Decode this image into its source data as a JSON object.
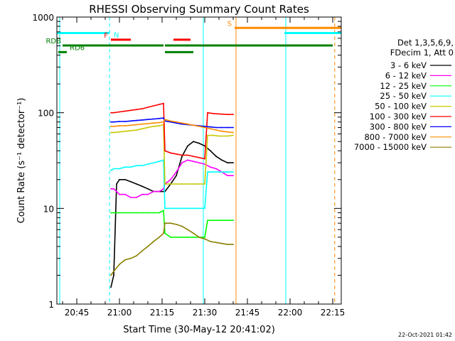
{
  "chart_data": {
    "type": "line",
    "title": "RHESSI Observing Summary Count Rates",
    "xlabel": "Start Time (30-May-12 20:41:02)",
    "ylabel": "Count Rate (s⁻¹ detector⁻¹)",
    "y_scale": "log",
    "ylim": [
      1,
      1000
    ],
    "xlim_minutes": [
      -2,
      98
    ],
    "x_ticks": [
      {
        "label": "20:45",
        "minute": 5
      },
      {
        "label": "21:00",
        "minute": 20
      },
      {
        "label": "21:15",
        "minute": 35
      },
      {
        "label": "21:30",
        "minute": 50
      },
      {
        "label": "21:45",
        "minute": 65
      },
      {
        "label": "22:00",
        "minute": 80
      },
      {
        "label": "22:15",
        "minute": 95
      }
    ],
    "y_ticks": [
      {
        "label": "1",
        "value": 1
      },
      {
        "label": "10",
        "value": 10
      },
      {
        "label": "100",
        "value": 100
      },
      {
        "label": "1000",
        "value": 1000
      }
    ],
    "legend_header": [
      "Det 1,3,5,6,9,",
      "FDecim 1, Att 0"
    ],
    "legend_position": "right",
    "footer": "22-Oct-2021 01:42",
    "series": [
      {
        "name": "3 - 6 keV",
        "color": "#000000",
        "points": [
          [
            17,
            1.5
          ],
          [
            18,
            2
          ],
          [
            19,
            18
          ],
          [
            20,
            20
          ],
          [
            22,
            20
          ],
          [
            24,
            19
          ],
          [
            26,
            18
          ],
          [
            28,
            17
          ],
          [
            30,
            16
          ],
          [
            32,
            15
          ],
          [
            34,
            15
          ],
          [
            35.5,
            15
          ],
          [
            36,
            15
          ],
          [
            38,
            18
          ],
          [
            40,
            22
          ],
          [
            42,
            35
          ],
          [
            44,
            45
          ],
          [
            46,
            50
          ],
          [
            48,
            48
          ],
          [
            50,
            45
          ],
          [
            52,
            40
          ],
          [
            54,
            35
          ],
          [
            56,
            32
          ],
          [
            58,
            30
          ],
          [
            60,
            30
          ]
        ]
      },
      {
        "name": "6 - 12 keV",
        "color": "#ff00ff",
        "points": [
          [
            17,
            16
          ],
          [
            18,
            16
          ],
          [
            19,
            15
          ],
          [
            20,
            14
          ],
          [
            22,
            14
          ],
          [
            24,
            13
          ],
          [
            26,
            13
          ],
          [
            28,
            14
          ],
          [
            30,
            14
          ],
          [
            32,
            15
          ],
          [
            34,
            15
          ],
          [
            35.5,
            16
          ],
          [
            36,
            18
          ],
          [
            38,
            20
          ],
          [
            40,
            24
          ],
          [
            42,
            30
          ],
          [
            44,
            32
          ],
          [
            46,
            31
          ],
          [
            48,
            30
          ],
          [
            50,
            29
          ],
          [
            52,
            27
          ],
          [
            54,
            26
          ],
          [
            56,
            24
          ],
          [
            58,
            22
          ],
          [
            60,
            22
          ]
        ]
      },
      {
        "name": "12 - 25 keV",
        "color": "#00ff00",
        "points": [
          [
            17,
            9
          ],
          [
            18,
            9
          ],
          [
            20,
            9
          ],
          [
            22,
            9
          ],
          [
            24,
            9
          ],
          [
            26,
            9
          ],
          [
            28,
            9
          ],
          [
            30,
            9
          ],
          [
            32,
            9
          ],
          [
            34,
            9
          ],
          [
            35.5,
            9.5
          ],
          [
            36,
            5.5
          ],
          [
            38,
            5
          ],
          [
            40,
            5
          ],
          [
            42,
            5
          ],
          [
            44,
            5
          ],
          [
            46,
            5
          ],
          [
            48,
            5
          ],
          [
            50,
            5
          ],
          [
            51,
            7.5
          ],
          [
            53,
            7.5
          ],
          [
            55,
            7.5
          ],
          [
            58,
            7.5
          ],
          [
            60,
            7.5
          ]
        ]
      },
      {
        "name": "25 - 50 keV",
        "color": "#00ffff",
        "points": [
          [
            17,
            25
          ],
          [
            18,
            26
          ],
          [
            20,
            26
          ],
          [
            22,
            27
          ],
          [
            24,
            27
          ],
          [
            26,
            28
          ],
          [
            28,
            28
          ],
          [
            30,
            29
          ],
          [
            32,
            30
          ],
          [
            34,
            31
          ],
          [
            35.5,
            32
          ],
          [
            36,
            10
          ],
          [
            38,
            10
          ],
          [
            40,
            10
          ],
          [
            42,
            10
          ],
          [
            44,
            10
          ],
          [
            46,
            10
          ],
          [
            48,
            10
          ],
          [
            50,
            10
          ],
          [
            51,
            24
          ],
          [
            53,
            24
          ],
          [
            55,
            24
          ],
          [
            58,
            24
          ],
          [
            60,
            24
          ]
        ]
      },
      {
        "name": "50 - 100 keV",
        "color": "#c8c800",
        "points": [
          [
            17,
            62
          ],
          [
            18,
            62
          ],
          [
            20,
            63
          ],
          [
            22,
            64
          ],
          [
            24,
            65
          ],
          [
            26,
            66
          ],
          [
            28,
            68
          ],
          [
            30,
            70
          ],
          [
            32,
            72
          ],
          [
            34,
            73
          ],
          [
            35.5,
            75
          ],
          [
            36,
            18
          ],
          [
            38,
            18
          ],
          [
            40,
            18
          ],
          [
            42,
            18
          ],
          [
            44,
            18
          ],
          [
            46,
            18
          ],
          [
            48,
            18
          ],
          [
            50,
            18
          ],
          [
            51,
            58
          ],
          [
            53,
            58
          ],
          [
            55,
            57
          ],
          [
            58,
            57
          ],
          [
            60,
            58
          ]
        ]
      },
      {
        "name": "100 - 300 keV",
        "color": "#ff0000",
        "points": [
          [
            17,
            100
          ],
          [
            18,
            100
          ],
          [
            20,
            102
          ],
          [
            22,
            104
          ],
          [
            24,
            106
          ],
          [
            26,
            108
          ],
          [
            28,
            110
          ],
          [
            30,
            114
          ],
          [
            32,
            118
          ],
          [
            34,
            122
          ],
          [
            35.5,
            125
          ],
          [
            36,
            40
          ],
          [
            38,
            38
          ],
          [
            40,
            37
          ],
          [
            42,
            36
          ],
          [
            44,
            36
          ],
          [
            46,
            35
          ],
          [
            48,
            34
          ],
          [
            50,
            33
          ],
          [
            51,
            100
          ],
          [
            53,
            98
          ],
          [
            55,
            97
          ],
          [
            58,
            96
          ],
          [
            60,
            96
          ]
        ]
      },
      {
        "name": "300 - 800 keV",
        "color": "#0000ff",
        "points": [
          [
            17,
            80
          ],
          [
            18,
            80
          ],
          [
            20,
            81
          ],
          [
            22,
            81
          ],
          [
            24,
            82
          ],
          [
            26,
            83
          ],
          [
            28,
            84
          ],
          [
            30,
            85
          ],
          [
            32,
            86
          ],
          [
            34,
            87
          ],
          [
            35.5,
            88
          ],
          [
            36,
            82
          ],
          [
            38,
            80
          ],
          [
            40,
            78
          ],
          [
            42,
            76
          ],
          [
            44,
            75
          ],
          [
            46,
            74
          ],
          [
            48,
            73
          ],
          [
            50,
            72
          ],
          [
            52,
            71
          ],
          [
            54,
            70
          ],
          [
            56,
            70
          ],
          [
            58,
            70
          ],
          [
            60,
            70
          ]
        ]
      },
      {
        "name": "800 - 7000 keV",
        "color": "#ff8c00",
        "points": [
          [
            17,
            72
          ],
          [
            18,
            72
          ],
          [
            20,
            73
          ],
          [
            22,
            73
          ],
          [
            24,
            74
          ],
          [
            26,
            75
          ],
          [
            28,
            76
          ],
          [
            30,
            77
          ],
          [
            32,
            78
          ],
          [
            34,
            79
          ],
          [
            35.5,
            80
          ],
          [
            36,
            85
          ],
          [
            38,
            82
          ],
          [
            40,
            80
          ],
          [
            42,
            78
          ],
          [
            44,
            76
          ],
          [
            46,
            74
          ],
          [
            48,
            72
          ],
          [
            50,
            70
          ],
          [
            52,
            68
          ],
          [
            54,
            66
          ],
          [
            56,
            64
          ],
          [
            58,
            63
          ],
          [
            60,
            62
          ]
        ]
      },
      {
        "name": "7000 - 15000 keV",
        "color": "#8b8000",
        "points": [
          [
            17,
            2
          ],
          [
            18,
            2.2
          ],
          [
            20,
            2.6
          ],
          [
            22,
            2.9
          ],
          [
            24,
            3
          ],
          [
            26,
            3.2
          ],
          [
            28,
            3.6
          ],
          [
            30,
            4
          ],
          [
            32,
            4.5
          ],
          [
            34,
            5
          ],
          [
            35.5,
            5.5
          ],
          [
            36,
            7
          ],
          [
            38,
            7
          ],
          [
            40,
            6.8
          ],
          [
            42,
            6.5
          ],
          [
            44,
            6
          ],
          [
            46,
            5.5
          ],
          [
            48,
            5
          ],
          [
            50,
            4.8
          ],
          [
            52,
            4.5
          ],
          [
            54,
            4.4
          ],
          [
            56,
            4.3
          ],
          [
            58,
            4.2
          ],
          [
            60,
            4.2
          ]
        ]
      }
    ],
    "state_bars": [
      {
        "label": "N",
        "color": "#00ffff",
        "segments": [
          [
            -2,
            16.5
          ],
          [
            78,
            98
          ]
        ],
        "level": 680
      },
      {
        "label": "F",
        "color": "#ff0000",
        "segments": [
          [
            17,
            24
          ],
          [
            39,
            45
          ]
        ],
        "level": 580
      },
      {
        "label": "S",
        "color": "#ff8c00",
        "segments": [
          [
            60.5,
            98
          ]
        ],
        "level": 770
      },
      {
        "label": "RDB",
        "color": "#008000",
        "segments": [
          [
            0,
            35.5
          ],
          [
            36,
            95
          ]
        ],
        "level": 505
      },
      {
        "label": "RD6",
        "color": "#008000",
        "segments": [
          [
            -2,
            0
          ],
          [
            36,
            46
          ]
        ],
        "level": 430
      }
    ],
    "vertical_lines": [
      {
        "minute": -1,
        "color": "#00ffff",
        "style": "solid"
      },
      {
        "minute": 16.5,
        "color": "#00ffff",
        "style": "dashed"
      },
      {
        "minute": 49.5,
        "color": "#00ffff",
        "style": "solid"
      },
      {
        "minute": 61,
        "color": "#ff8c00",
        "style": "solid"
      },
      {
        "minute": 78.5,
        "color": "#00ffff",
        "style": "solid"
      },
      {
        "minute": 95.7,
        "color": "#ff8c00",
        "style": "dashed"
      }
    ]
  }
}
